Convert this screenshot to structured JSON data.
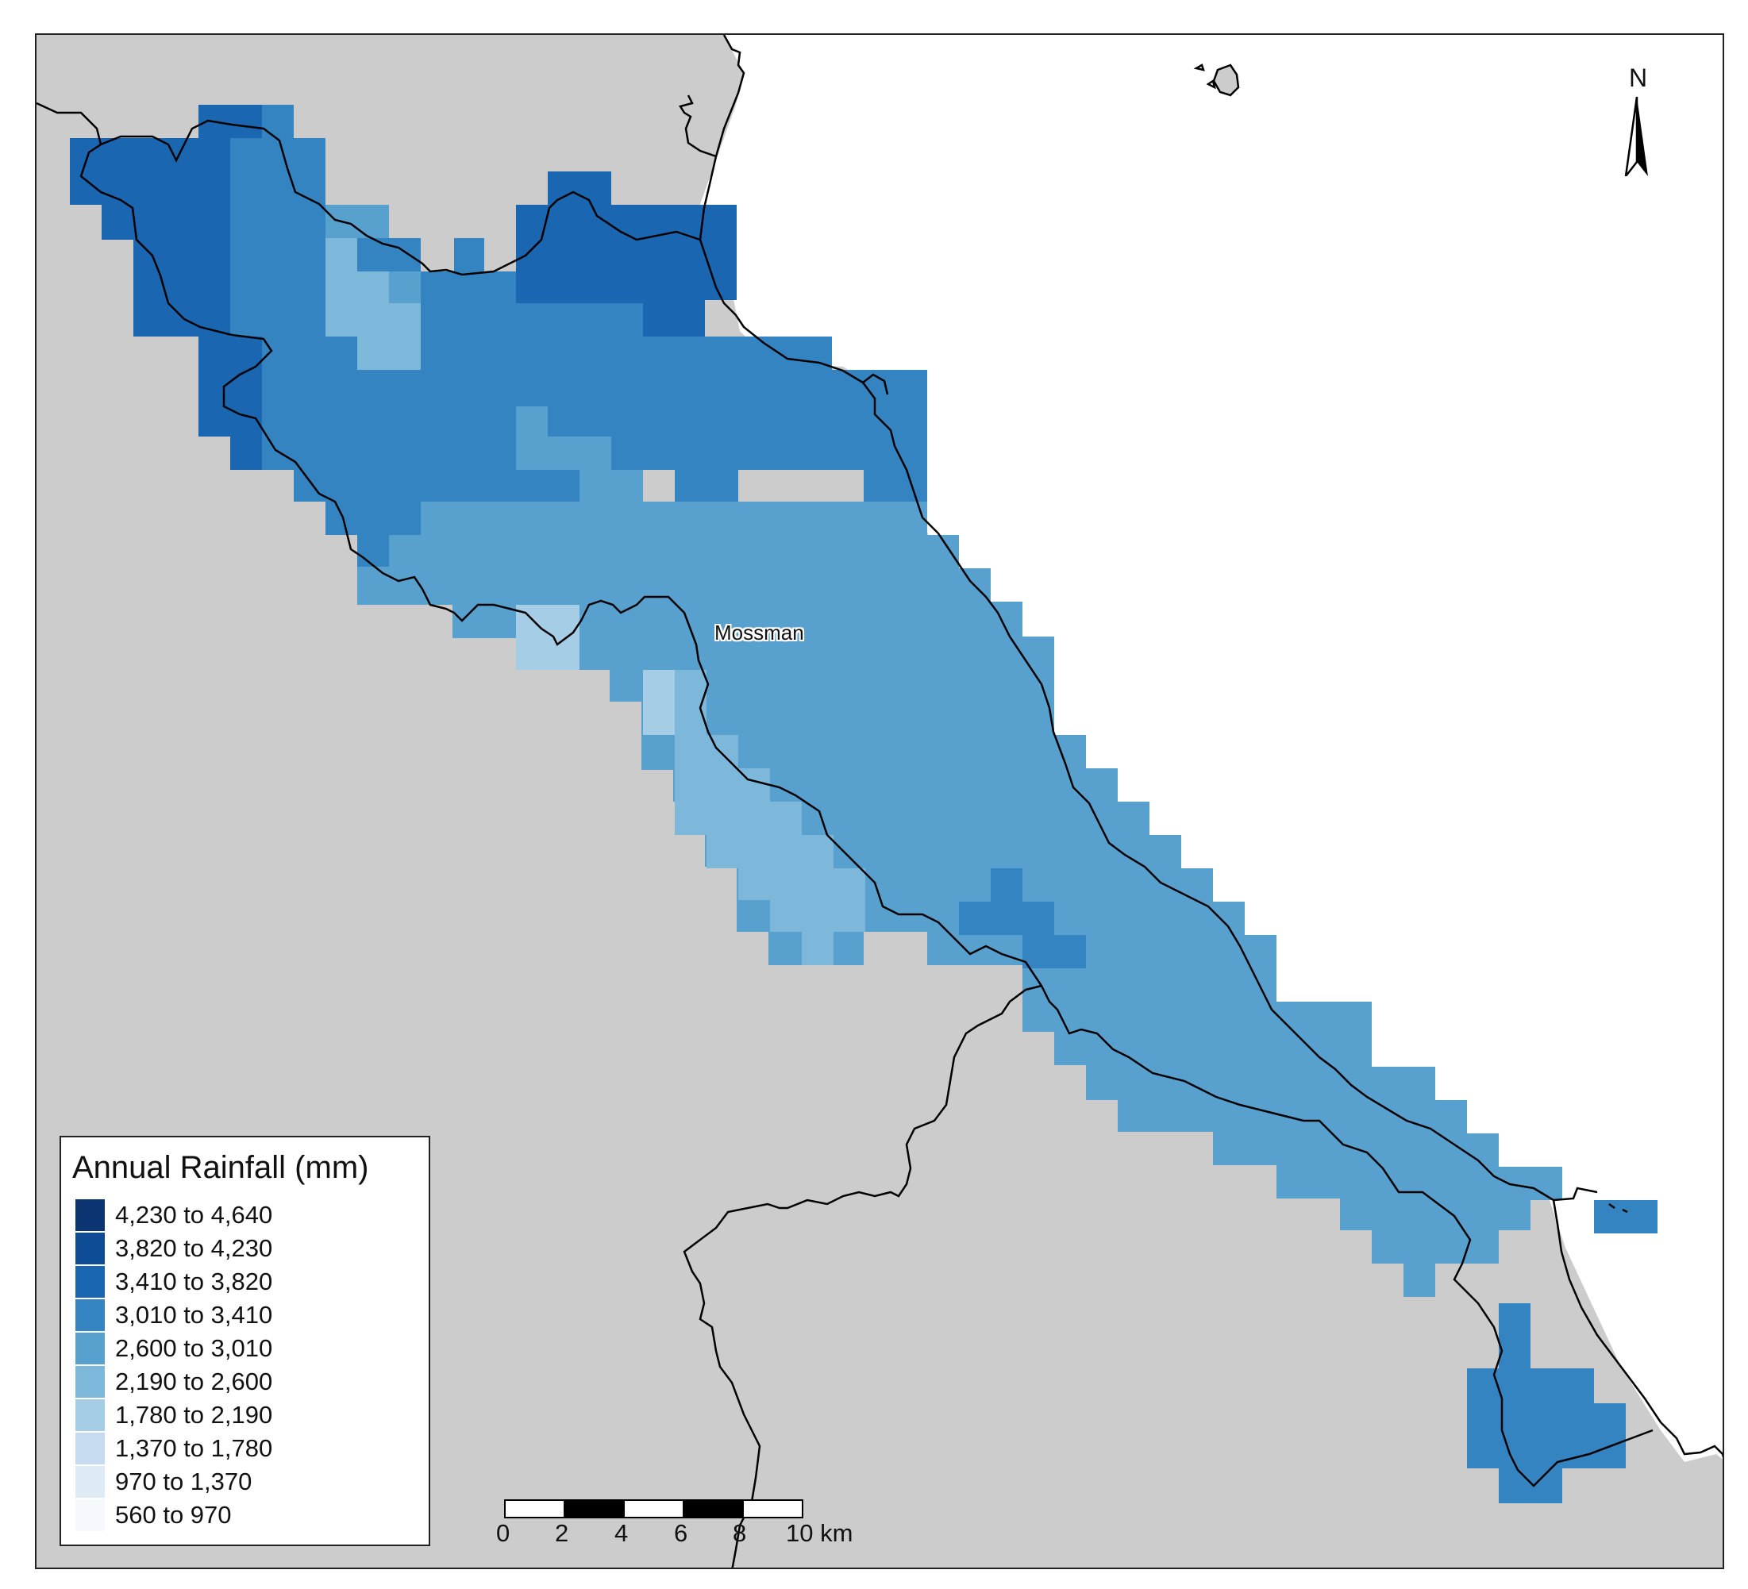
{
  "map": {
    "place_label": "Mossman",
    "north_label": "N",
    "land_color": "#cccccc",
    "sea_color": "#ffffff",
    "boundary_color": "#000000"
  },
  "legend": {
    "title": "Annual Rainfall (mm)",
    "classes": [
      {
        "label": "4,230 to 4,640",
        "color": "#0b3470"
      },
      {
        "label": "3,820 to 4,230",
        "color": "#0e4d96"
      },
      {
        "label": "3,410 to 3,820",
        "color": "#1a66b0"
      },
      {
        "label": "3,010 to 3,410",
        "color": "#3484c1"
      },
      {
        "label": "2,600 to 3,010",
        "color": "#58a0ce"
      },
      {
        "label": "2,190 to 2,600",
        "color": "#7db8da"
      },
      {
        "label": "1,780 to 2,190",
        "color": "#a6cde6"
      },
      {
        "label": "1,370 to 1,780",
        "color": "#c6dbef"
      },
      {
        "label": "970 to 1,370",
        "color": "#deebf7"
      },
      {
        "label": "560 to 970",
        "color": "#f5f9fe"
      }
    ]
  },
  "scale_bar": {
    "tick_labels": [
      "0",
      "2",
      "4",
      "6",
      "8",
      "10 km"
    ]
  }
}
